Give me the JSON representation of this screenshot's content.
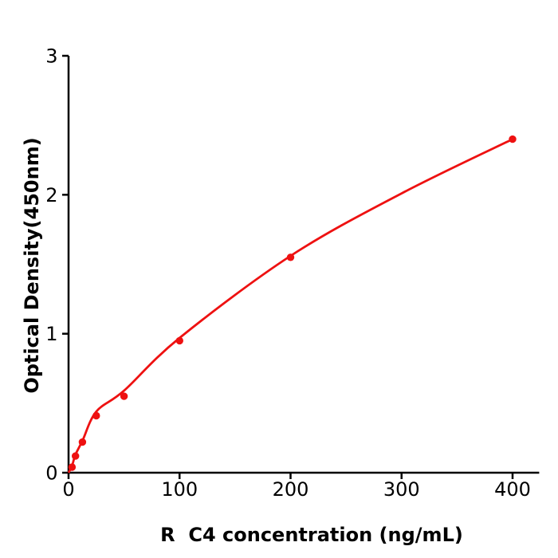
{
  "figure": {
    "background": "#ffffff"
  },
  "chart_data": {
    "type": "scatter",
    "title": "",
    "xlabel": "R  C4 concentration (ng/mL)",
    "ylabel": "Optical Density(450nm)",
    "x_unit": "ng/mL",
    "y_unit": "OD 450nm",
    "points": {
      "x": [
        3.125,
        6.25,
        12.5,
        25,
        50,
        100,
        200,
        400
      ],
      "od": [
        0.04,
        0.12,
        0.22,
        0.41,
        0.55,
        0.95,
        1.55,
        2.4
      ]
    },
    "fit_curve": {
      "x": [
        0,
        3.125,
        6.25,
        12.5,
        25,
        50,
        100,
        200,
        300,
        400
      ],
      "od": [
        0,
        0.05,
        0.13,
        0.23,
        0.44,
        0.59,
        0.97,
        1.56,
        2.01,
        2.4
      ]
    },
    "x_ticks": [
      0,
      100,
      200,
      300,
      400
    ],
    "y_ticks": [
      0,
      1,
      2,
      3
    ],
    "xlim": [
      0,
      424
    ],
    "ylim": [
      0,
      3
    ],
    "grid": false,
    "legend": "none",
    "colors": {
      "line": "#ee1111",
      "marker": "#ee1111",
      "axis": "#000000",
      "text": "#000000",
      "background": "#ffffff"
    }
  }
}
